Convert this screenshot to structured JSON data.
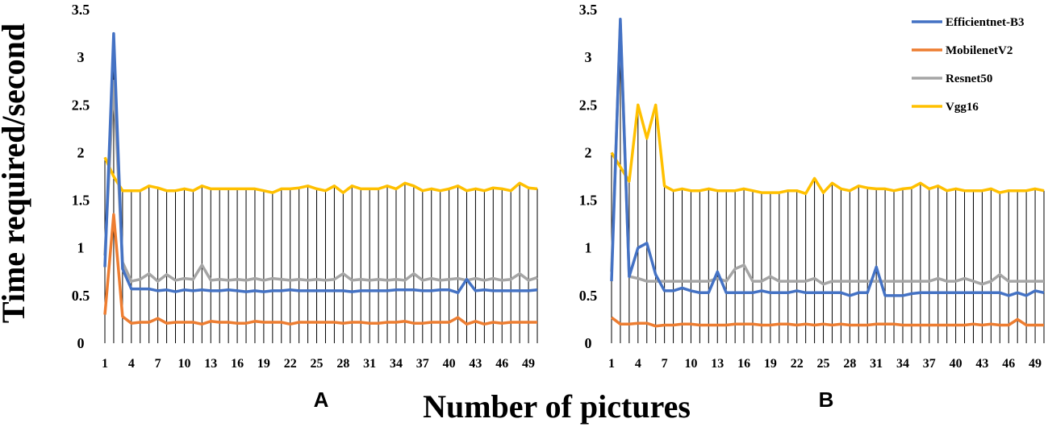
{
  "figure": {
    "ylabel": "Time required/second",
    "xlabel": "Number of pictures"
  },
  "colors": {
    "Efficientnet-B3": "#4472C4",
    "MobilenetV2": "#ED7D31",
    "Resnet50": "#A5A5A5",
    "Vgg16": "#FFC000",
    "droplines": "#000000"
  },
  "chart_data": [
    {
      "type": "line",
      "panel_label": "A",
      "x": [
        1,
        2,
        3,
        4,
        5,
        6,
        7,
        8,
        9,
        10,
        11,
        12,
        13,
        14,
        15,
        16,
        17,
        18,
        19,
        20,
        21,
        22,
        23,
        24,
        25,
        26,
        27,
        28,
        29,
        30,
        31,
        32,
        33,
        34,
        35,
        36,
        37,
        38,
        39,
        40,
        41,
        42,
        43,
        44,
        45,
        46,
        47,
        48,
        49,
        50
      ],
      "x_ticks": [
        1,
        4,
        7,
        10,
        13,
        16,
        19,
        22,
        25,
        28,
        31,
        34,
        37,
        40,
        43,
        46,
        49
      ],
      "ylim": [
        0,
        3.5
      ],
      "y_ticks": [
        0,
        0.5,
        1,
        1.5,
        2,
        2.5,
        3,
        3.5
      ],
      "y_tick_labels": [
        "0",
        "0.5",
        "1",
        "1.5",
        "2",
        "2.5",
        "3",
        "3.5"
      ],
      "drop_lines": true,
      "grid": false,
      "series": [
        {
          "name": "Efficientnet-B3",
          "values": [
            0.8,
            3.25,
            0.78,
            0.57,
            0.57,
            0.57,
            0.55,
            0.56,
            0.54,
            0.56,
            0.55,
            0.56,
            0.55,
            0.55,
            0.56,
            0.55,
            0.54,
            0.55,
            0.54,
            0.55,
            0.55,
            0.56,
            0.55,
            0.55,
            0.55,
            0.55,
            0.55,
            0.55,
            0.54,
            0.55,
            0.55,
            0.55,
            0.55,
            0.56,
            0.56,
            0.56,
            0.55,
            0.55,
            0.56,
            0.56,
            0.53,
            0.67,
            0.55,
            0.56,
            0.55,
            0.55,
            0.55,
            0.55,
            0.55,
            0.56
          ]
        },
        {
          "name": "MobilenetV2",
          "values": [
            0.3,
            1.35,
            0.28,
            0.21,
            0.22,
            0.22,
            0.26,
            0.21,
            0.22,
            0.22,
            0.22,
            0.2,
            0.23,
            0.22,
            0.22,
            0.21,
            0.21,
            0.23,
            0.22,
            0.22,
            0.22,
            0.2,
            0.22,
            0.22,
            0.22,
            0.22,
            0.22,
            0.21,
            0.22,
            0.22,
            0.21,
            0.21,
            0.22,
            0.22,
            0.23,
            0.21,
            0.21,
            0.22,
            0.22,
            0.22,
            0.27,
            0.2,
            0.23,
            0.2,
            0.22,
            0.21,
            0.22,
            0.22,
            0.22,
            0.22
          ]
        },
        {
          "name": "Resnet50",
          "values": [
            0.92,
            2.75,
            0.85,
            0.65,
            0.67,
            0.73,
            0.65,
            0.72,
            0.66,
            0.68,
            0.67,
            0.82,
            0.66,
            0.67,
            0.66,
            0.67,
            0.66,
            0.68,
            0.66,
            0.68,
            0.67,
            0.66,
            0.67,
            0.66,
            0.67,
            0.66,
            0.67,
            0.73,
            0.66,
            0.67,
            0.66,
            0.67,
            0.66,
            0.67,
            0.66,
            0.73,
            0.66,
            0.68,
            0.66,
            0.67,
            0.68,
            0.66,
            0.68,
            0.66,
            0.68,
            0.66,
            0.67,
            0.73,
            0.66,
            0.69
          ]
        },
        {
          "name": "Vgg16",
          "values": [
            1.95,
            1.75,
            1.6,
            1.6,
            1.6,
            1.65,
            1.63,
            1.6,
            1.6,
            1.62,
            1.6,
            1.65,
            1.62,
            1.62,
            1.62,
            1.62,
            1.62,
            1.62,
            1.6,
            1.58,
            1.62,
            1.62,
            1.63,
            1.65,
            1.62,
            1.6,
            1.65,
            1.58,
            1.65,
            1.62,
            1.62,
            1.62,
            1.65,
            1.62,
            1.68,
            1.65,
            1.6,
            1.62,
            1.6,
            1.62,
            1.65,
            1.6,
            1.62,
            1.6,
            1.63,
            1.62,
            1.6,
            1.68,
            1.63,
            1.62
          ]
        }
      ]
    },
    {
      "type": "line",
      "panel_label": "B",
      "x": [
        1,
        2,
        3,
        4,
        5,
        6,
        7,
        8,
        9,
        10,
        11,
        12,
        13,
        14,
        15,
        16,
        17,
        18,
        19,
        20,
        21,
        22,
        23,
        24,
        25,
        26,
        27,
        28,
        29,
        30,
        31,
        32,
        33,
        34,
        35,
        36,
        37,
        38,
        39,
        40,
        41,
        42,
        43,
        44,
        45,
        46,
        47,
        48,
        49,
        50
      ],
      "x_ticks": [
        1,
        4,
        7,
        10,
        13,
        16,
        19,
        22,
        25,
        28,
        31,
        34,
        37,
        40,
        43,
        46,
        49
      ],
      "ylim": [
        0,
        3.5
      ],
      "y_ticks": [
        0,
        0.5,
        1,
        1.5,
        2,
        2.5,
        3,
        3.5
      ],
      "y_tick_labels": [
        "0",
        "0.5",
        "1",
        "1.5",
        "2",
        "2.5",
        "3",
        "3.5"
      ],
      "drop_lines": true,
      "grid": false,
      "legend": {
        "position": "top-right",
        "entries": [
          "Efficientnet-B3",
          "MobilenetV2",
          "Resnet50",
          "Vgg16"
        ]
      },
      "series": [
        {
          "name": "Efficientnet-B3",
          "values": [
            0.65,
            3.4,
            0.7,
            1.0,
            1.05,
            0.72,
            0.55,
            0.55,
            0.58,
            0.55,
            0.53,
            0.53,
            0.75,
            0.53,
            0.53,
            0.53,
            0.53,
            0.55,
            0.53,
            0.53,
            0.53,
            0.55,
            0.53,
            0.53,
            0.53,
            0.53,
            0.53,
            0.5,
            0.53,
            0.53,
            0.8,
            0.5,
            0.5,
            0.5,
            0.52,
            0.53,
            0.53,
            0.53,
            0.53,
            0.53,
            0.53,
            0.53,
            0.53,
            0.53,
            0.53,
            0.5,
            0.53,
            0.5,
            0.55,
            0.53
          ]
        },
        {
          "name": "MobilenetV2",
          "values": [
            0.27,
            0.2,
            0.2,
            0.21,
            0.21,
            0.18,
            0.19,
            0.19,
            0.2,
            0.2,
            0.19,
            0.19,
            0.19,
            0.19,
            0.2,
            0.2,
            0.2,
            0.19,
            0.19,
            0.2,
            0.2,
            0.19,
            0.2,
            0.19,
            0.2,
            0.19,
            0.2,
            0.19,
            0.19,
            0.19,
            0.2,
            0.2,
            0.2,
            0.19,
            0.19,
            0.19,
            0.19,
            0.19,
            0.19,
            0.19,
            0.19,
            0.2,
            0.19,
            0.2,
            0.19,
            0.19,
            0.25,
            0.19,
            0.19,
            0.19
          ]
        },
        {
          "name": "Resnet50",
          "values": [
            0.75,
            3.35,
            0.7,
            0.68,
            0.65,
            0.65,
            0.65,
            0.65,
            0.65,
            0.65,
            0.65,
            0.65,
            0.68,
            0.65,
            0.78,
            0.82,
            0.65,
            0.65,
            0.7,
            0.65,
            0.65,
            0.65,
            0.65,
            0.68,
            0.62,
            0.65,
            0.65,
            0.65,
            0.65,
            0.65,
            0.65,
            0.65,
            0.65,
            0.65,
            0.65,
            0.65,
            0.65,
            0.68,
            0.65,
            0.65,
            0.68,
            0.65,
            0.62,
            0.65,
            0.72,
            0.65,
            0.65,
            0.65,
            0.65,
            0.65
          ]
        },
        {
          "name": "Vgg16",
          "values": [
            2.0,
            1.85,
            1.7,
            2.5,
            2.15,
            2.5,
            1.65,
            1.6,
            1.62,
            1.6,
            1.6,
            1.62,
            1.6,
            1.6,
            1.6,
            1.62,
            1.6,
            1.58,
            1.58,
            1.58,
            1.6,
            1.6,
            1.57,
            1.73,
            1.58,
            1.68,
            1.62,
            1.6,
            1.65,
            1.63,
            1.62,
            1.62,
            1.6,
            1.62,
            1.63,
            1.68,
            1.62,
            1.65,
            1.6,
            1.62,
            1.6,
            1.6,
            1.6,
            1.62,
            1.58,
            1.6,
            1.6,
            1.6,
            1.62,
            1.6
          ]
        }
      ]
    }
  ]
}
